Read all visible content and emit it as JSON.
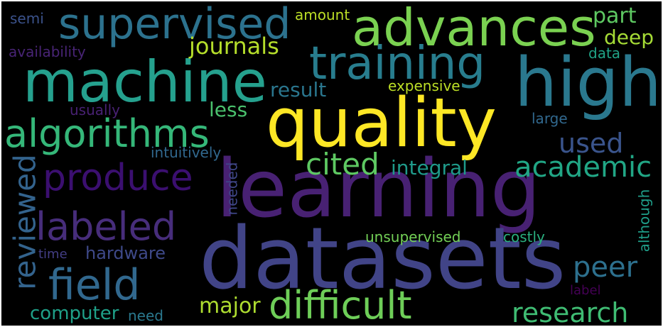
{
  "words": [
    {
      "key": "learning",
      "text": "learning",
      "color": "#482173"
    },
    {
      "key": "datasets",
      "text": "datasets",
      "color": "#414487"
    },
    {
      "key": "quality",
      "text": "quality",
      "color": "#fde725"
    },
    {
      "key": "machine",
      "text": "machine",
      "color": "#25a18e"
    },
    {
      "key": "advances",
      "text": "advances",
      "color": "#7ad151"
    },
    {
      "key": "high",
      "text": "high",
      "color": "#2a788e"
    },
    {
      "key": "supervised",
      "text": "supervised",
      "color": "#2c728e"
    },
    {
      "key": "training",
      "text": "training",
      "color": "#287d8e"
    },
    {
      "key": "algorithms",
      "text": "algorithms",
      "color": "#35b779"
    },
    {
      "key": "produce",
      "text": "produce",
      "color": "#3b0f70"
    },
    {
      "key": "labeled",
      "text": "labeled",
      "color": "#472d7b"
    },
    {
      "key": "field",
      "text": "field",
      "color": "#31688e"
    },
    {
      "key": "difficult",
      "text": "difficult",
      "color": "#6ece58"
    },
    {
      "key": "reviewed",
      "text": "reviewed",
      "color": "#33638d"
    },
    {
      "key": "cited",
      "text": "cited",
      "color": "#5ec962"
    },
    {
      "key": "academic",
      "text": "academic",
      "color": "#21a685"
    },
    {
      "key": "research",
      "text": "research",
      "color": "#3fbc73"
    },
    {
      "key": "peer",
      "text": "peer",
      "color": "#2d708e"
    },
    {
      "key": "used",
      "text": "used",
      "color": "#3a548c"
    },
    {
      "key": "journals",
      "text": "journals",
      "color": "#b5de2b"
    },
    {
      "key": "major",
      "text": "major",
      "color": "#addc30"
    },
    {
      "key": "computer",
      "text": "computer",
      "color": "#1fa088"
    },
    {
      "key": "hardware",
      "text": "hardware",
      "color": "#3e4989"
    },
    {
      "key": "integral",
      "text": "integral",
      "color": "#1f9a8a"
    },
    {
      "key": "result",
      "text": "result",
      "color": "#2a768e"
    },
    {
      "key": "part",
      "text": "part",
      "color": "#5ec962"
    },
    {
      "key": "deep",
      "text": "deep",
      "color": "#a5db36"
    },
    {
      "key": "less",
      "text": "less",
      "color": "#4ac16d"
    },
    {
      "key": "expensive",
      "text": "expensive",
      "color": "#bddf26"
    },
    {
      "key": "amount",
      "text": "amount",
      "color": "#bddf26"
    },
    {
      "key": "semi",
      "text": "semi",
      "color": "#3b528b"
    },
    {
      "key": "availability",
      "text": "availability",
      "color": "#482475"
    },
    {
      "key": "data",
      "text": "data",
      "color": "#20a386"
    },
    {
      "key": "large",
      "text": "large",
      "color": "#31688e"
    },
    {
      "key": "usually",
      "text": "usually",
      "color": "#482173"
    },
    {
      "key": "intuitively",
      "text": "intuitively",
      "color": "#31688e"
    },
    {
      "key": "needed",
      "text": "needed",
      "color": "#3f4788"
    },
    {
      "key": "although",
      "text": "although",
      "color": "#1f9e89"
    },
    {
      "key": "unsupervised",
      "text": "unsupervised",
      "color": "#73d056"
    },
    {
      "key": "costly",
      "text": "costly",
      "color": "#2ab07f"
    },
    {
      "key": "time",
      "text": "time",
      "color": "#433e85"
    },
    {
      "key": "need",
      "text": "need",
      "color": "#2a788e"
    },
    {
      "key": "label",
      "text": "label",
      "color": "#440154"
    }
  ]
}
